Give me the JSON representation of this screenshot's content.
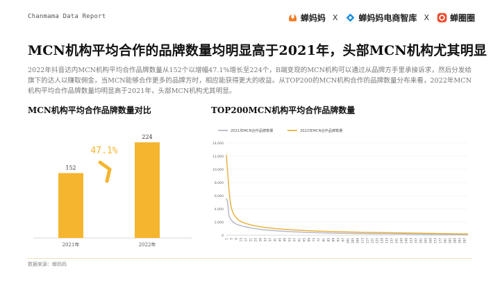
{
  "header": {
    "report_label": "Chanmama Data Report",
    "separator": "X",
    "logos": [
      {
        "name": "蝉妈妈",
        "color": "#f07c23"
      },
      {
        "name": "蝉妈妈电商智库",
        "color": "#1a8fe3"
      },
      {
        "name": "蝉圈圈",
        "color": "#f04a2d"
      }
    ]
  },
  "title": "MCN机构平均合作的品牌数量均明显高于2021年，头部MCN机构尤其明显",
  "summary": "2022年抖音达内MCN机构平均合作品牌数量从152个以增幅47.1%增长至224个，B端变现的MCN机构可以通过从品牌方手里承接诉求，然后分发给旗下的达人以赚取佣金，当MCN能够合作更多的品牌方时，相应能获得更大的收益。从TOP200的MCN机构合作的品牌数量分布来看，2022年MCN机构平均合作品牌数量均明显高于2021年，头部MCN机构尤其明显。",
  "left_chart_title": "MCN机构平均合作品牌数量对比",
  "right_chart_title": "TOP200MCN机构平均合作品牌数量",
  "source": "数据来源：蝉妈妈",
  "colors": {
    "bar": "#f5b52e",
    "line2021": "#b8b8c8",
    "line2022": "#e8b23f",
    "accent": "#f5b52e"
  },
  "chart_data": [
    {
      "type": "bar",
      "categories": [
        "2021年",
        "2022年"
      ],
      "values": [
        152,
        224
      ],
      "growth_label": "47.1%",
      "ylim": [
        0,
        260
      ]
    },
    {
      "type": "line",
      "x": [
        1,
        2,
        3,
        4,
        5,
        6,
        7,
        8,
        9,
        10,
        11,
        12,
        13,
        14,
        15,
        16,
        17,
        18,
        19,
        20,
        21,
        22,
        23,
        24,
        25,
        26,
        27,
        28,
        29,
        30,
        31,
        32,
        33,
        34,
        35,
        36,
        37,
        38,
        39,
        40,
        41,
        42,
        43,
        44,
        45,
        46,
        47,
        48,
        49,
        50,
        51,
        52,
        53,
        54,
        55,
        56,
        57,
        58,
        59,
        60,
        61,
        62,
        63,
        64,
        65,
        66,
        67,
        68,
        69,
        70,
        71,
        72,
        73,
        74,
        75,
        76,
        77,
        78,
        79,
        80,
        81,
        82,
        83,
        84,
        85,
        86,
        87,
        88,
        89,
        90,
        91,
        92,
        93,
        94,
        95,
        96,
        97,
        98,
        99,
        100,
        101,
        102,
        103,
        104,
        105,
        106,
        107,
        108,
        109,
        110,
        111,
        112,
        113,
        114,
        115,
        116,
        117,
        118,
        119,
        120,
        121,
        122,
        123,
        124,
        125,
        126,
        127,
        128,
        129,
        130,
        131,
        132,
        133,
        134,
        135,
        136,
        137,
        138,
        139,
        140,
        141,
        142,
        143,
        144,
        145,
        146,
        147,
        148,
        149,
        150,
        151,
        152,
        153,
        154,
        155,
        156,
        157,
        158,
        159,
        160,
        161,
        162,
        163,
        164,
        165,
        166,
        167,
        168,
        169,
        170,
        171,
        172,
        173,
        174,
        175,
        176,
        177,
        178,
        179,
        180,
        181,
        182,
        183,
        184,
        185,
        186,
        187,
        188,
        189,
        190,
        191,
        192,
        193,
        194,
        195,
        196,
        197,
        198,
        199,
        200
      ],
      "x_tick_labels": [
        "1",
        "5",
        "9",
        "13",
        "17",
        "21",
        "25",
        "29",
        "33",
        "37",
        "41",
        "45",
        "49",
        "53",
        "57",
        "61",
        "65",
        "69",
        "73",
        "77",
        "81",
        "85",
        "89",
        "93",
        "97",
        "101",
        "105",
        "109",
        "113",
        "117",
        "121",
        "125",
        "129",
        "133",
        "137",
        "141",
        "145",
        "149",
        "153",
        "157",
        "161",
        "165",
        "169",
        "173",
        "177",
        "181",
        "185",
        "189",
        "193",
        "197"
      ],
      "ylim": [
        0,
        14000
      ],
      "y_ticks": [
        "0",
        "2,000",
        "4,000",
        "6,000",
        "8,000",
        "10,000",
        "12,000",
        "14,000"
      ],
      "y_tick_values": [
        0,
        2000,
        4000,
        6000,
        8000,
        10000,
        12000,
        14000
      ],
      "series": [
        {
          "name": "2021年MCN合作品牌数量",
          "values": [
            5600,
            5000,
            3100,
            2600,
            2300,
            2100,
            1900,
            1800,
            1700,
            1600,
            1550,
            1500,
            1450,
            1400,
            1350,
            1300,
            1260,
            1220,
            1180,
            1140,
            1100,
            1070,
            1040,
            1010,
            980,
            955,
            930,
            905,
            880,
            860,
            840,
            820,
            800,
            785,
            770,
            755,
            740,
            725,
            710,
            695,
            680,
            668,
            656,
            644,
            632,
            620,
            609,
            598,
            587,
            576,
            566,
            556,
            546,
            536,
            527,
            518,
            509,
            500,
            492,
            484,
            476,
            468,
            460,
            453,
            446,
            439,
            432,
            425,
            418,
            412,
            406,
            400,
            394,
            388,
            382,
            377,
            372,
            367,
            362,
            357,
            352,
            347,
            342,
            338,
            334,
            330,
            326,
            322,
            318,
            314,
            310,
            306,
            302,
            299,
            296,
            293,
            290,
            287,
            284,
            281,
            278,
            275,
            272,
            269,
            266,
            263,
            260,
            258,
            256,
            254,
            252,
            250,
            248,
            246,
            244,
            242,
            240,
            238,
            236,
            234,
            232,
            230,
            228,
            226,
            224,
            222,
            220,
            218,
            216,
            214,
            212,
            210,
            208,
            206,
            204,
            202,
            200,
            198,
            196,
            194,
            192,
            190,
            188,
            186,
            184,
            182,
            180,
            178,
            176,
            174,
            172,
            170,
            168,
            166,
            164,
            162,
            160,
            158,
            156,
            154,
            152,
            150,
            148,
            146,
            144,
            142,
            140,
            138,
            136,
            134,
            132,
            130,
            128,
            126,
            124,
            122,
            120,
            118,
            116,
            114,
            112,
            110,
            108,
            106,
            104,
            102,
            100,
            98,
            96,
            94,
            92,
            90,
            88,
            86,
            84,
            82,
            80,
            78,
            76,
            74
          ]
        },
        {
          "name": "2022年MCN合作品牌数量",
          "values": [
            12200,
            9600,
            7200,
            5300,
            4200,
            3600,
            3200,
            2900,
            2650,
            2450,
            2300,
            2180,
            2080,
            1990,
            1910,
            1840,
            1780,
            1720,
            1670,
            1620,
            1575,
            1530,
            1490,
            1450,
            1415,
            1380,
            1348,
            1316,
            1286,
            1258,
            1230,
            1204,
            1180,
            1156,
            1134,
            1112,
            1092,
            1072,
            1052,
            1034,
            1016,
            998,
            982,
            966,
            950,
            935,
            920,
            906,
            892,
            878,
            865,
            852,
            840,
            828,
            816,
            805,
            794,
            783,
            772,
            762,
            752,
            742,
            732,
            723,
            714,
            705,
            696,
            688,
            680,
            672,
            664,
            656,
            648,
            641,
            634,
            627,
            620,
            613,
            606,
            600,
            594,
            588,
            582,
            576,
            570,
            564,
            558,
            553,
            548,
            543,
            538,
            533,
            528,
            523,
            518,
            513,
            508,
            504,
            500,
            496,
            492,
            488,
            484,
            480,
            476,
            472,
            468,
            464,
            460,
            456,
            452,
            448,
            445,
            442,
            439,
            436,
            433,
            430,
            427,
            424,
            421,
            418,
            415,
            412,
            409,
            406,
            403,
            400,
            397,
            394,
            391,
            388,
            385,
            382,
            379,
            376,
            373,
            370,
            367,
            364,
            361,
            358,
            355,
            352,
            349,
            346,
            343,
            340,
            337,
            334,
            331,
            328,
            325,
            322,
            319,
            316,
            313,
            310,
            307,
            304,
            301,
            298,
            295,
            292,
            289,
            286,
            283,
            280,
            277,
            274,
            271,
            268,
            265,
            262,
            259,
            256,
            253,
            250,
            247,
            244,
            241,
            238,
            235,
            232,
            229,
            226,
            223,
            220,
            217,
            214,
            211,
            208,
            205,
            202,
            199,
            196,
            193,
            190,
            187,
            184
          ]
        }
      ],
      "legend": "top-left"
    }
  ]
}
